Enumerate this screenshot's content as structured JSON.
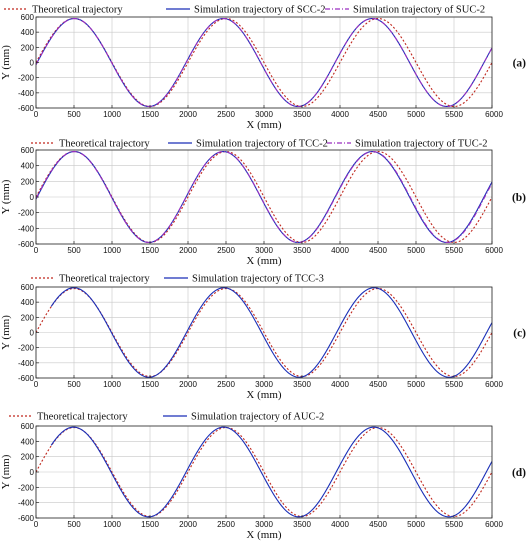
{
  "chart_data": [
    {
      "type": "line",
      "panel_label": "(a)",
      "xlabel": "X (mm)",
      "ylabel": "Y (mm)",
      "xlim": [
        0,
        6000
      ],
      "ylim": [
        -600,
        600
      ],
      "xticks": [
        "0",
        "500",
        "1000",
        "1500",
        "2000",
        "2500",
        "3000",
        "3500",
        "4000",
        "4500",
        "5000",
        "5500",
        "6000"
      ],
      "yticks": [
        "600",
        "400",
        "200",
        "0",
        "-200",
        "-400",
        "-600"
      ],
      "grid": true,
      "legend_position": "top",
      "series": [
        {
          "name": "Theoretical trajectory",
          "color": "#c0281e",
          "dash": "2,2",
          "amplitude": 580,
          "period": 2000,
          "phase": 0,
          "start_x": 0
        },
        {
          "name": "Simulation trajectory of SCC-2",
          "color": "#1a2fb8",
          "dash": "",
          "amplitude": 580,
          "period": 1960,
          "phase": 15,
          "start_x": 0
        },
        {
          "name": "Simulation trajectory of SUC-2",
          "color": "#9a2fc0",
          "dash": "5,2,1,2",
          "amplitude": 580,
          "period": 1960,
          "phase": 15,
          "start_x": 0
        }
      ]
    },
    {
      "type": "line",
      "panel_label": "(b)",
      "xlabel": "X (mm)",
      "ylabel": "Y (mm)",
      "xlim": [
        0,
        6000
      ],
      "ylim": [
        -600,
        600
      ],
      "xticks": [
        "0",
        "500",
        "1000",
        "1500",
        "2000",
        "2500",
        "3000",
        "3500",
        "4000",
        "4500",
        "5000",
        "5500",
        "6000"
      ],
      "yticks": [
        "600",
        "400",
        "200",
        "0",
        "-200",
        "-400",
        "-600"
      ],
      "grid": true,
      "legend_position": "top",
      "series": [
        {
          "name": "Theoretical trajectory",
          "color": "#c0281e",
          "dash": "2,2",
          "amplitude": 580,
          "period": 2000,
          "phase": 0,
          "start_x": 0
        },
        {
          "name": "Simulation trajectory of TCC-2",
          "color": "#1a2fb8",
          "dash": "",
          "amplitude": 580,
          "period": 1960,
          "phase": 15,
          "start_x": 0
        },
        {
          "name": "Simulation trajectory of TUC-2",
          "color": "#9a2fc0",
          "dash": "5,2,1,2",
          "amplitude": 580,
          "period": 1965,
          "phase": 10,
          "start_x": 0
        }
      ]
    },
    {
      "type": "line",
      "panel_label": "(c)",
      "xlabel": "X (mm)",
      "ylabel": "Y (mm)",
      "xlim": [
        0,
        6000
      ],
      "ylim": [
        -600,
        600
      ],
      "xticks": [
        "0",
        "500",
        "1000",
        "1500",
        "2000",
        "2500",
        "3000",
        "3500",
        "4000",
        "4500",
        "5000",
        "5500",
        "6000"
      ],
      "yticks": [
        "600",
        "400",
        "200",
        "0",
        "-200",
        "-400",
        "-600"
      ],
      "grid": true,
      "legend_position": "top",
      "series": [
        {
          "name": "Theoretical trajectory",
          "color": "#c0281e",
          "dash": "2,2",
          "amplitude": 580,
          "period": 2000,
          "phase": 0,
          "start_x": 0
        },
        {
          "name": "Simulation trajectory of TCC-3",
          "color": "#1a2fb8",
          "dash": "",
          "amplitude": 590,
          "period": 1975,
          "phase": 5,
          "start_x": 200
        }
      ]
    },
    {
      "type": "line",
      "panel_label": "(d)",
      "xlabel": "X (mm)",
      "ylabel": "Y (mm)",
      "xlim": [
        0,
        6000
      ],
      "ylim": [
        -600,
        600
      ],
      "xticks": [
        "0",
        "500",
        "1000",
        "1500",
        "2000",
        "2500",
        "3000",
        "3500",
        "4000",
        "4500",
        "5000",
        "5500",
        "6000"
      ],
      "yticks": [
        "600",
        "400",
        "200",
        "0",
        "-200",
        "-400",
        "-600"
      ],
      "grid": true,
      "legend_position": "top",
      "series": [
        {
          "name": "Theoretical trajectory",
          "color": "#c0281e",
          "dash": "2,2",
          "amplitude": 580,
          "period": 2000,
          "phase": 0,
          "start_x": 0
        },
        {
          "name": "Simulation trajectory of AUC-2",
          "color": "#1a2fb8",
          "dash": "",
          "amplitude": 585,
          "period": 1975,
          "phase": 0,
          "start_x": 200
        }
      ]
    }
  ]
}
